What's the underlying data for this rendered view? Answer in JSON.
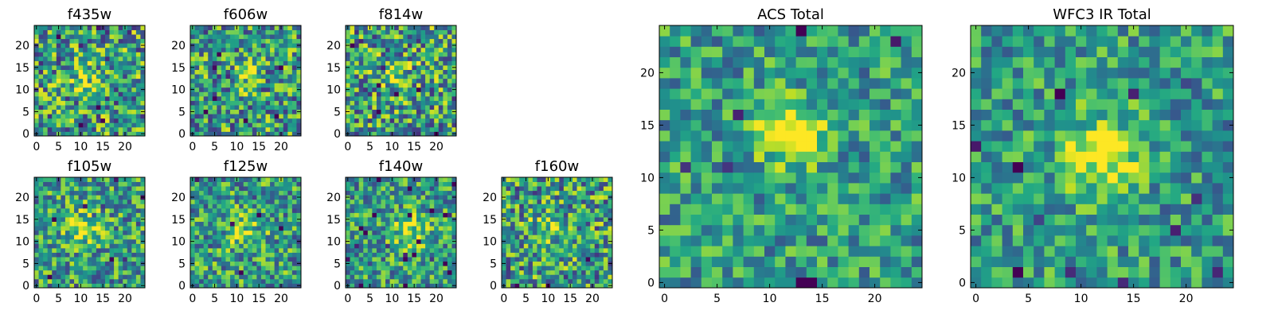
{
  "chart_data": [
    {
      "type": "heatmap",
      "title": "f435w",
      "x_ticks": [
        "0",
        "5",
        "10",
        "15",
        "20"
      ],
      "y_ticks": [
        "0",
        "5",
        "10",
        "15",
        "20"
      ],
      "xlim": [
        0,
        24
      ],
      "ylim": [
        0,
        24
      ],
      "grid_size": 24,
      "blob": {
        "x": 11,
        "y": 12,
        "spread": 2.5,
        "strength": 0.25
      },
      "noise": 0.42,
      "seed": 11
    },
    {
      "type": "heatmap",
      "title": "f606w",
      "x_ticks": [
        "0",
        "5",
        "10",
        "15",
        "20"
      ],
      "y_ticks": [
        "0",
        "5",
        "10",
        "15",
        "20"
      ],
      "xlim": [
        0,
        24
      ],
      "ylim": [
        0,
        24
      ],
      "grid_size": 24,
      "blob": {
        "x": 12,
        "y": 13,
        "spread": 1.8,
        "strength": 0.45
      },
      "noise": 0.4,
      "seed": 23
    },
    {
      "type": "heatmap",
      "title": "f814w",
      "x_ticks": [
        "0",
        "5",
        "10",
        "15",
        "20"
      ],
      "y_ticks": [
        "0",
        "5",
        "10",
        "15",
        "20"
      ],
      "xlim": [
        0,
        24
      ],
      "ylim": [
        0,
        24
      ],
      "grid_size": 24,
      "blob": {
        "x": 11,
        "y": 13,
        "spread": 2.5,
        "strength": 0.25
      },
      "noise": 0.42,
      "seed": 37
    },
    {
      "type": "heatmap",
      "title": "f105w",
      "x_ticks": [
        "0",
        "5",
        "10",
        "15",
        "20"
      ],
      "y_ticks": [
        "0",
        "5",
        "10",
        "15",
        "20"
      ],
      "xlim": [
        0,
        24
      ],
      "ylim": [
        0,
        24
      ],
      "grid_size": 24,
      "blob": {
        "x": 11,
        "y": 13,
        "spread": 3,
        "strength": 0.3
      },
      "noise": 0.35,
      "seed": 41
    },
    {
      "type": "heatmap",
      "title": "f125w",
      "x_ticks": [
        "0",
        "5",
        "10",
        "15",
        "20"
      ],
      "y_ticks": [
        "0",
        "5",
        "10",
        "15",
        "20"
      ],
      "xlim": [
        0,
        24
      ],
      "ylim": [
        0,
        24
      ],
      "grid_size": 24,
      "blob": {
        "x": 12,
        "y": 12,
        "spread": 3,
        "strength": 0.25
      },
      "noise": 0.35,
      "seed": 53
    },
    {
      "type": "heatmap",
      "title": "f140w",
      "x_ticks": [
        "0",
        "5",
        "10",
        "15",
        "20"
      ],
      "y_ticks": [
        "0",
        "5",
        "10",
        "15",
        "20"
      ],
      "xlim": [
        0,
        24
      ],
      "ylim": [
        0,
        24
      ],
      "grid_size": 24,
      "blob": {
        "x": 14,
        "y": 12,
        "spread": 3,
        "strength": 0.3
      },
      "noise": 0.33,
      "seed": 67
    },
    {
      "type": "heatmap",
      "title": "f160w",
      "x_ticks": [
        "0",
        "5",
        "10",
        "15",
        "20"
      ],
      "y_ticks": [
        "0",
        "5",
        "10",
        "15",
        "20"
      ],
      "xlim": [
        0,
        24
      ],
      "ylim": [
        0,
        24
      ],
      "grid_size": 24,
      "blob": {
        "x": 10,
        "y": 13,
        "spread": 2.5,
        "strength": 0.25
      },
      "noise": 0.4,
      "seed": 79
    },
    {
      "type": "heatmap",
      "title": "ACS Total",
      "x_ticks": [
        "0",
        "5",
        "10",
        "15",
        "20"
      ],
      "y_ticks": [
        "0",
        "5",
        "10",
        "15",
        "20"
      ],
      "xlim": [
        0,
        24
      ],
      "ylim": [
        0,
        24
      ],
      "grid_size": 24,
      "blob": {
        "x": 12,
        "y": 14,
        "spread": 2,
        "strength": 0.55
      },
      "noise": 0.28,
      "seed": 97
    },
    {
      "type": "heatmap",
      "title": "WFC3 IR Total",
      "x_ticks": [
        "0",
        "5",
        "10",
        "15",
        "20"
      ],
      "y_ticks": [
        "0",
        "5",
        "10",
        "15",
        "20"
      ],
      "xlim": [
        0,
        24
      ],
      "ylim": [
        0,
        24
      ],
      "grid_size": 24,
      "blob": {
        "x": 12,
        "y": 12,
        "spread": 2.5,
        "strength": 0.5
      },
      "noise": 0.28,
      "seed": 131
    }
  ]
}
